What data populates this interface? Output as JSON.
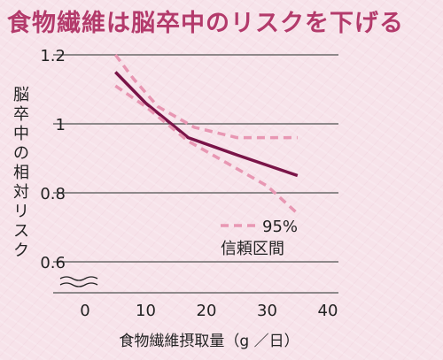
{
  "title": "食物繊維は脳卒中のリスクを下げる",
  "colors": {
    "background": "#f7e3ea",
    "title": "#b33a6b",
    "main_line": "#7a1448",
    "ci_line": "#e897b3",
    "grid": "#6b6b6b"
  },
  "chart_data": {
    "type": "line",
    "ylabel": "脳卒中の相対リスク",
    "xlabel": "食物繊維摂取量（g ／日）",
    "xlim": [
      0,
      40
    ],
    "ylim": [
      0.6,
      1.2
    ],
    "x_ticks": [
      "0",
      "10",
      "20",
      "30",
      "40"
    ],
    "y_ticks": [
      "0.6",
      "0.8",
      "1",
      "1.2"
    ],
    "y_tick_values": [
      0.6,
      0.8,
      1.0,
      1.2
    ],
    "x_tick_values": [
      0,
      10,
      20,
      30,
      40
    ],
    "axis_break": true,
    "grid": "horizontal",
    "series": [
      {
        "style": "solid",
        "x": [
          5,
          10,
          17,
          25,
          35
        ],
        "y": [
          1.15,
          1.06,
          0.96,
          0.91,
          0.85
        ]
      },
      {
        "name": "95%信頼区間",
        "style": "dashed",
        "x": [
          5,
          8,
          12,
          18,
          25,
          35
        ],
        "y": [
          1.2,
          1.13,
          1.05,
          0.99,
          0.96,
          0.96
        ]
      },
      {
        "name": "95%信頼区間",
        "style": "dashed",
        "x": [
          5,
          10,
          17,
          25,
          30,
          35
        ],
        "y": [
          1.11,
          1.05,
          0.95,
          0.87,
          0.82,
          0.74
        ]
      }
    ],
    "legend": {
      "line1": "95%",
      "line2": "信頼区間",
      "placement": "bottom-right"
    }
  }
}
